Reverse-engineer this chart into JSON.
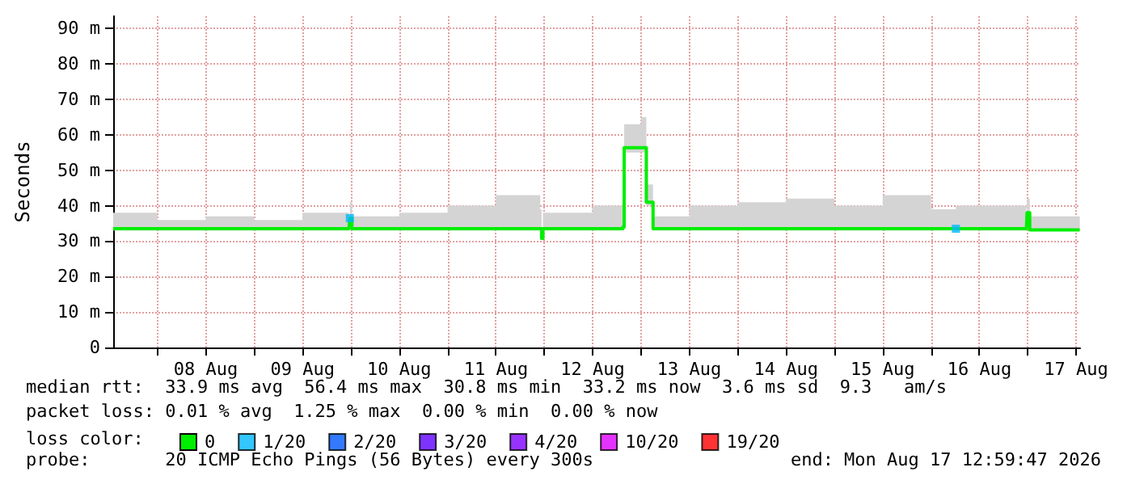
{
  "chart_data": {
    "type": "step",
    "ylabel": "Seconds",
    "legend_title": "loss color:",
    "legend": "bottom",
    "grid": true,
    "line_style": "solid",
    "annotations": [
      "median rtt:  33.9 ms avg  56.4 ms max  30.8 ms min  33.2 ms now  3.6 ms sd  9.3   am/s",
      "packet loss: 0.01 % avg  1.25 % max  0.00 % min  0.00 % now",
      "probe:       20 ICMP Echo Pings (56 Bytes) every 300s",
      "end: Mon Aug 17 12:59:47 2026"
    ],
    "xlim": [
      "2026-08-07T13:00",
      "2026-08-17T13:00"
    ],
    "xticks": [
      {
        "value": "2026-08-08T00:00",
        "label": null
      },
      {
        "value": "2026-08-08T12:00",
        "label": "08 Aug"
      },
      {
        "value": "2026-08-09T00:00",
        "label": null
      },
      {
        "value": "2026-08-09T12:00",
        "label": "09 Aug"
      },
      {
        "value": "2026-08-10T00:00",
        "label": null
      },
      {
        "value": "2026-08-10T12:00",
        "label": "10 Aug"
      },
      {
        "value": "2026-08-11T00:00",
        "label": null
      },
      {
        "value": "2026-08-11T12:00",
        "label": "11 Aug"
      },
      {
        "value": "2026-08-12T00:00",
        "label": null
      },
      {
        "value": "2026-08-12T12:00",
        "label": "12 Aug"
      },
      {
        "value": "2026-08-13T00:00",
        "label": null
      },
      {
        "value": "2026-08-13T12:00",
        "label": "13 Aug"
      },
      {
        "value": "2026-08-14T00:00",
        "label": null
      },
      {
        "value": "2026-08-14T12:00",
        "label": "14 Aug"
      },
      {
        "value": "2026-08-15T00:00",
        "label": null
      },
      {
        "value": "2026-08-15T12:00",
        "label": "15 Aug"
      },
      {
        "value": "2026-08-16T00:00",
        "label": null
      },
      {
        "value": "2026-08-16T12:00",
        "label": "16 Aug"
      },
      {
        "value": "2026-08-17T00:00",
        "label": null
      },
      {
        "value": "2026-08-17T12:00",
        "label": "17 Aug"
      }
    ],
    "ylim": [
      0,
      93.5
    ],
    "yticks": [
      0,
      {
        "value": 10,
        "label": "10 m"
      },
      {
        "value": 20,
        "label": "20 m"
      },
      {
        "value": 30,
        "label": "30 m"
      },
      {
        "value": 40,
        "label": "40 m"
      },
      {
        "value": 50,
        "label": "50 m"
      },
      {
        "value": 60,
        "label": "60 m"
      },
      {
        "value": 70,
        "label": "70 m"
      },
      {
        "value": 80,
        "label": "80 m"
      },
      {
        "value": 90,
        "label": "90 m"
      }
    ],
    "x": [
      "2026-08-07T13:00",
      "2026-08-08T00:00",
      "2026-08-08T12:00",
      "2026-08-09T00:00",
      "2026-08-09T12:00",
      "2026-08-09T23:30",
      "2026-08-09T23:45",
      "2026-08-10T00:15",
      "2026-08-10T12:00",
      "2026-08-11T00:00",
      "2026-08-11T12:00",
      "2026-08-11T23:00",
      "2026-08-11T23:20",
      "2026-08-11T23:40",
      "2026-08-12T12:00",
      "2026-08-12T19:30",
      "2026-08-12T19:50",
      "2026-08-13T00:00",
      "2026-08-13T01:20",
      "2026-08-13T03:00",
      "2026-08-13T12:00",
      "2026-08-14T00:00",
      "2026-08-14T12:00",
      "2026-08-15T00:00",
      "2026-08-15T12:00",
      "2026-08-16T00:00",
      "2026-08-16T06:10",
      "2026-08-16T12:00",
      "2026-08-16T23:40",
      "2026-08-16T23:50",
      "2026-08-17T00:30",
      "2026-08-17T12:55"
    ],
    "series": [
      {
        "name": "0",
        "color": "#00ee00",
        "values": [
          33.5,
          33.5,
          33.5,
          33.5,
          33.5,
          33.5,
          36.5,
          33.5,
          33.5,
          33.5,
          33.5,
          33.5,
          30.8,
          33.5,
          33.5,
          34,
          56.4,
          56.4,
          41,
          33.5,
          33.5,
          33.5,
          33.5,
          33.5,
          33.5,
          33.5,
          33.5,
          33.5,
          33.5,
          38,
          33.2,
          33.2
        ],
        "lower": [
          33,
          33,
          33,
          33,
          33,
          33,
          34,
          33,
          33,
          33,
          33,
          33,
          30.5,
          33,
          33,
          33.5,
          55,
          55,
          40,
          33,
          33,
          33,
          33,
          33,
          33,
          33,
          33,
          33,
          33,
          35,
          33,
          33
        ],
        "upper": [
          38,
          36,
          37,
          36,
          38,
          37,
          41,
          37,
          38,
          40,
          43,
          39,
          33,
          38,
          40,
          38,
          63,
          65,
          46,
          37,
          40,
          41,
          42,
          40,
          43,
          39,
          40,
          40,
          37,
          42,
          37,
          39
        ]
      },
      {
        "name": "1/20",
        "color": "#00b8ff",
        "type": "scatter",
        "marker": "square",
        "x": [
          "2026-08-09T23:45",
          "2026-08-16T06:10"
        ],
        "values": [
          36.5,
          33.5
        ]
      },
      {
        "name": "2/20",
        "color": "#0059ff",
        "type": "scatter",
        "values": [
          null,
          null,
          null,
          null,
          null,
          null,
          null,
          null,
          null,
          null,
          null,
          null,
          null,
          null,
          null,
          null,
          null,
          null,
          null,
          null,
          null,
          null,
          null,
          null,
          null,
          null,
          null,
          null,
          null,
          null,
          null,
          null
        ]
      },
      {
        "name": "3/20",
        "color": "#5e00ff",
        "type": "scatter",
        "values": [
          null,
          null,
          null,
          null,
          null,
          null,
          null,
          null,
          null,
          null,
          null,
          null,
          null,
          null,
          null,
          null,
          null,
          null,
          null,
          null,
          null,
          null,
          null,
          null,
          null,
          null,
          null,
          null,
          null,
          null,
          null,
          null
        ]
      },
      {
        "name": "4/20",
        "color": "#7e00ff",
        "type": "scatter",
        "values": [
          null,
          null,
          null,
          null,
          null,
          null,
          null,
          null,
          null,
          null,
          null,
          null,
          null,
          null,
          null,
          null,
          null,
          null,
          null,
          null,
          null,
          null,
          null,
          null,
          null,
          null,
          null,
          null,
          null,
          null,
          null,
          null
        ]
      },
      {
        "name": "10/20",
        "color": "#dd00ff",
        "type": "scatter",
        "values": [
          null,
          null,
          null,
          null,
          null,
          null,
          null,
          null,
          null,
          null,
          null,
          null,
          null,
          null,
          null,
          null,
          null,
          null,
          null,
          null,
          null,
          null,
          null,
          null,
          null,
          null,
          null,
          null,
          null,
          null,
          null,
          null
        ]
      },
      {
        "name": "19/20",
        "color": "#ff0000",
        "type": "scatter",
        "values": [
          null,
          null,
          null,
          null,
          null,
          null,
          null,
          null,
          null,
          null,
          null,
          null,
          null,
          null,
          null,
          null,
          null,
          null,
          null,
          null,
          null,
          null,
          null,
          null,
          null,
          null,
          null,
          null,
          null,
          null,
          null,
          null
        ]
      }
    ]
  }
}
